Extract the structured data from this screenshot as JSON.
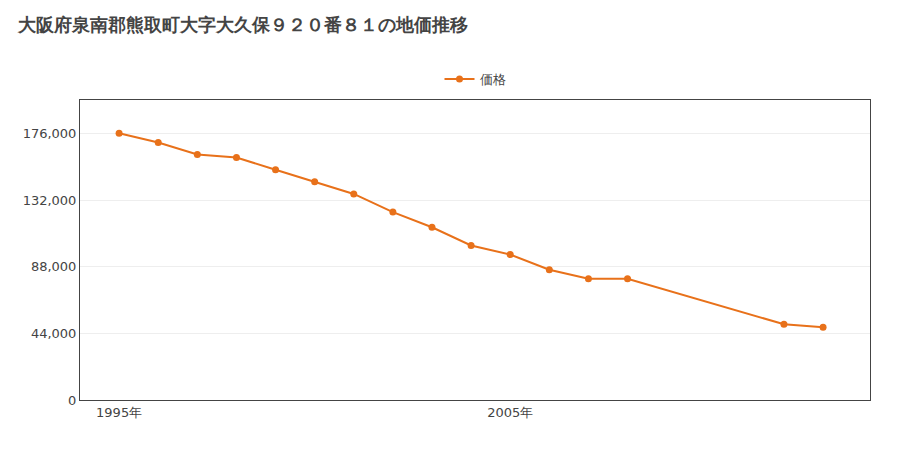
{
  "chart_data": {
    "type": "line",
    "title": "大阪府泉南郡熊取町大字大久保９２０番８１の地価推移",
    "x": [
      1995,
      1996,
      1997,
      1998,
      1999,
      2000,
      2001,
      2002,
      2003,
      2004,
      2005,
      2006,
      2007,
      2008,
      2012,
      2013
    ],
    "series": [
      {
        "name": "価格",
        "color": "#e8711a",
        "marker": "circle",
        "values": [
          176000,
          170000,
          162000,
          160000,
          152000,
          144000,
          136000,
          124000,
          114000,
          102000,
          96000,
          86000,
          80000,
          80000,
          50000,
          48000
        ]
      }
    ],
    "xlim": [
      1994.0,
      2014.2
    ],
    "xticks": [
      {
        "value": 1995,
        "label": "1995年"
      },
      {
        "value": 2005,
        "label": "2005年"
      }
    ],
    "ylim": [
      0,
      198000
    ],
    "yticks": [
      0,
      {
        "value": 44000,
        "label": "44,000"
      },
      {
        "value": 88000,
        "label": "88,000"
      },
      {
        "value": 132000,
        "label": "132,000"
      },
      {
        "value": 176000,
        "label": "176,000"
      }
    ],
    "grid": "y",
    "legend": "top"
  }
}
